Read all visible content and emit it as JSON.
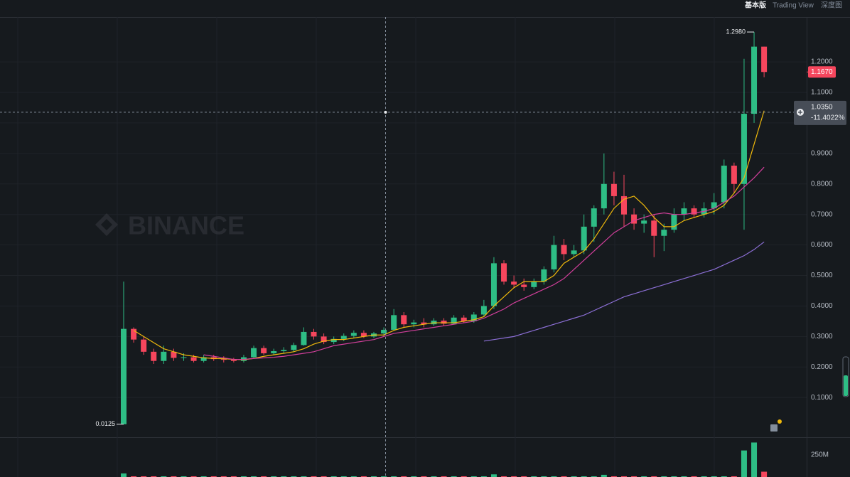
{
  "tabs": [
    "基本版",
    "Trading View",
    "深度图"
  ],
  "chart_data": {
    "type": "candlestick",
    "watermark": "BINANCE",
    "up_color": "#2ebd85",
    "down_color": "#f6465d",
    "ylim": [
      -0.03,
      1.347
    ],
    "yticks": [
      {
        "value": 0.1,
        "label": "0.1000"
      },
      {
        "value": 0.2,
        "label": "0.2000"
      },
      {
        "value": 0.3,
        "label": "0.3000"
      },
      {
        "value": 0.4,
        "label": "0.4000"
      },
      {
        "value": 0.5,
        "label": "0.5000"
      },
      {
        "value": 0.6,
        "label": "0.6000"
      },
      {
        "value": 0.7,
        "label": "0.7000"
      },
      {
        "value": 0.8,
        "label": "0.8000"
      },
      {
        "value": 0.9,
        "label": "0.9000"
      },
      {
        "value": 1.0,
        "label": "1.0000"
      },
      {
        "value": 1.1,
        "label": "1.1000"
      },
      {
        "value": 1.2,
        "label": "1.2000"
      }
    ],
    "grid": true,
    "candles": [
      [
        0.0125,
        0.48,
        0.0125,
        0.325
      ],
      [
        0.325,
        0.33,
        0.28,
        0.29
      ],
      [
        0.29,
        0.3,
        0.24,
        0.25
      ],
      [
        0.25,
        0.26,
        0.21,
        0.22
      ],
      [
        0.22,
        0.27,
        0.21,
        0.25
      ],
      [
        0.25,
        0.26,
        0.22,
        0.23
      ],
      [
        0.23,
        0.245,
        0.22,
        0.232
      ],
      [
        0.232,
        0.24,
        0.215,
        0.22
      ],
      [
        0.22,
        0.24,
        0.215,
        0.232
      ],
      [
        0.232,
        0.24,
        0.22,
        0.226
      ],
      [
        0.226,
        0.235,
        0.215,
        0.224
      ],
      [
        0.224,
        0.23,
        0.215,
        0.22
      ],
      [
        0.22,
        0.24,
        0.215,
        0.232
      ],
      [
        0.232,
        0.27,
        0.23,
        0.262
      ],
      [
        0.262,
        0.27,
        0.24,
        0.245
      ],
      [
        0.245,
        0.26,
        0.24,
        0.252
      ],
      [
        0.252,
        0.265,
        0.245,
        0.256
      ],
      [
        0.256,
        0.28,
        0.25,
        0.272
      ],
      [
        0.272,
        0.33,
        0.27,
        0.315
      ],
      [
        0.315,
        0.325,
        0.29,
        0.3
      ],
      [
        0.3,
        0.31,
        0.275,
        0.282
      ],
      [
        0.282,
        0.3,
        0.275,
        0.292
      ],
      [
        0.292,
        0.31,
        0.285,
        0.302
      ],
      [
        0.302,
        0.32,
        0.295,
        0.312
      ],
      [
        0.312,
        0.32,
        0.295,
        0.3
      ],
      [
        0.3,
        0.315,
        0.295,
        0.31
      ],
      [
        0.31,
        0.33,
        0.3,
        0.322
      ],
      [
        0.322,
        0.39,
        0.32,
        0.37
      ],
      [
        0.37,
        0.38,
        0.33,
        0.34
      ],
      [
        0.34,
        0.355,
        0.33,
        0.346
      ],
      [
        0.346,
        0.36,
        0.33,
        0.34
      ],
      [
        0.34,
        0.36,
        0.335,
        0.352
      ],
      [
        0.352,
        0.36,
        0.335,
        0.342
      ],
      [
        0.342,
        0.37,
        0.34,
        0.362
      ],
      [
        0.362,
        0.37,
        0.345,
        0.35
      ],
      [
        0.35,
        0.38,
        0.345,
        0.372
      ],
      [
        0.372,
        0.42,
        0.365,
        0.4
      ],
      [
        0.4,
        0.56,
        0.39,
        0.54
      ],
      [
        0.54,
        0.55,
        0.47,
        0.48
      ],
      [
        0.48,
        0.5,
        0.46,
        0.47
      ],
      [
        0.47,
        0.49,
        0.45,
        0.462
      ],
      [
        0.462,
        0.49,
        0.455,
        0.48
      ],
      [
        0.48,
        0.53,
        0.47,
        0.52
      ],
      [
        0.52,
        0.63,
        0.51,
        0.6
      ],
      [
        0.6,
        0.62,
        0.55,
        0.57
      ],
      [
        0.57,
        0.6,
        0.56,
        0.582
      ],
      [
        0.582,
        0.7,
        0.57,
        0.66
      ],
      [
        0.66,
        0.73,
        0.61,
        0.72
      ],
      [
        0.72,
        0.9,
        0.7,
        0.8
      ],
      [
        0.8,
        0.84,
        0.73,
        0.76
      ],
      [
        0.76,
        0.83,
        0.66,
        0.7
      ],
      [
        0.7,
        0.72,
        0.65,
        0.67
      ],
      [
        0.67,
        0.7,
        0.64,
        0.68
      ],
      [
        0.68,
        0.7,
        0.56,
        0.63
      ],
      [
        0.63,
        0.67,
        0.58,
        0.65
      ],
      [
        0.65,
        0.72,
        0.64,
        0.7
      ],
      [
        0.7,
        0.74,
        0.68,
        0.72
      ],
      [
        0.72,
        0.73,
        0.69,
        0.7
      ],
      [
        0.7,
        0.74,
        0.69,
        0.72
      ],
      [
        0.72,
        0.77,
        0.7,
        0.74
      ],
      [
        0.74,
        0.88,
        0.72,
        0.86
      ],
      [
        0.86,
        0.87,
        0.77,
        0.8
      ],
      [
        0.8,
        1.21,
        0.65,
        1.03
      ],
      [
        1.03,
        1.298,
        1.0,
        1.25
      ],
      [
        1.25,
        1.25,
        1.15,
        1.167
      ]
    ],
    "moving_averages": [
      {
        "color": "#f0b90b",
        "values": [
          null,
          0.32,
          0.3,
          0.28,
          0.26,
          0.25,
          0.24,
          0.235,
          0.23,
          0.228,
          0.227,
          0.225,
          0.224,
          0.228,
          0.235,
          0.24,
          0.245,
          0.25,
          0.26,
          0.275,
          0.285,
          0.29,
          0.29,
          0.295,
          0.3,
          0.305,
          0.305,
          0.32,
          0.33,
          0.335,
          0.34,
          0.345,
          0.345,
          0.345,
          0.35,
          0.355,
          0.365,
          0.4,
          0.43,
          0.46,
          0.48,
          0.48,
          0.48,
          0.5,
          0.54,
          0.56,
          0.58,
          0.62,
          0.67,
          0.72,
          0.75,
          0.76,
          0.73,
          0.69,
          0.66,
          0.66,
          0.68,
          0.69,
          0.7,
          0.71,
          0.73,
          0.77,
          0.82,
          0.93,
          1.04
        ]
      },
      {
        "color": "#d23f9b",
        "values": [
          null,
          null,
          null,
          null,
          null,
          null,
          null,
          null,
          0.24,
          0.235,
          0.23,
          0.225,
          0.225,
          0.228,
          0.23,
          0.232,
          0.235,
          0.24,
          0.245,
          0.25,
          0.26,
          0.27,
          0.275,
          0.28,
          0.285,
          0.29,
          0.3,
          0.31,
          0.315,
          0.32,
          0.325,
          0.33,
          0.335,
          0.34,
          0.345,
          0.35,
          0.36,
          0.375,
          0.39,
          0.41,
          0.425,
          0.44,
          0.455,
          0.47,
          0.49,
          0.52,
          0.55,
          0.58,
          0.61,
          0.64,
          0.66,
          0.68,
          0.69,
          0.7,
          0.705,
          0.7,
          0.7,
          0.705,
          0.71,
          0.72,
          0.74,
          0.76,
          0.79,
          0.82,
          0.855
        ]
      },
      {
        "color": "#8c6fd6",
        "values": [
          null,
          null,
          null,
          null,
          null,
          null,
          null,
          null,
          null,
          null,
          null,
          null,
          null,
          null,
          null,
          null,
          null,
          null,
          null,
          null,
          null,
          null,
          null,
          null,
          null,
          null,
          null,
          null,
          null,
          null,
          null,
          null,
          null,
          null,
          null,
          null,
          0.285,
          0.29,
          0.295,
          0.3,
          0.31,
          0.32,
          0.33,
          0.34,
          0.35,
          0.36,
          0.37,
          0.385,
          0.4,
          0.415,
          0.43,
          0.44,
          0.45,
          0.46,
          0.47,
          0.48,
          0.49,
          0.5,
          0.51,
          0.52,
          0.535,
          0.55,
          0.565,
          0.585,
          0.61
        ]
      }
    ],
    "high_label": {
      "value": 1.298,
      "label": "1.2980"
    },
    "low_label": {
      "value": 0.0125,
      "label": "0.0125"
    },
    "last_price": {
      "value": 1.167,
      "label": "1.1670"
    },
    "crosshair": {
      "value": 1.035,
      "label": "1.0350",
      "change": {
        "value": -11.4022,
        "label": "-11.4022%"
      }
    },
    "volume": {
      "values": [
        40000000,
        8000000,
        8000000,
        8000000,
        8000000,
        8000000,
        8000000,
        8000000,
        8000000,
        8000000,
        8000000,
        8000000,
        8000000,
        8000000,
        8000000,
        8000000,
        8000000,
        8000000,
        8000000,
        8000000,
        8000000,
        8000000,
        8000000,
        8000000,
        8000000,
        8000000,
        8000000,
        8000000,
        8000000,
        8000000,
        8000000,
        8000000,
        8000000,
        8000000,
        8000000,
        8000000,
        8000000,
        30000000,
        8000000,
        8000000,
        8000000,
        8000000,
        8000000,
        8000000,
        8000000,
        8000000,
        8000000,
        8000000,
        25000000,
        8000000,
        8000000,
        8000000,
        8000000,
        8000000,
        8000000,
        8000000,
        8000000,
        8000000,
        8000000,
        8000000,
        8000000,
        8000000,
        300000000,
        390000000,
        60000000
      ],
      "ylim": [
        0,
        450000000
      ],
      "yticks": [
        {
          "value": 250000000,
          "label": "250M"
        }
      ]
    }
  }
}
